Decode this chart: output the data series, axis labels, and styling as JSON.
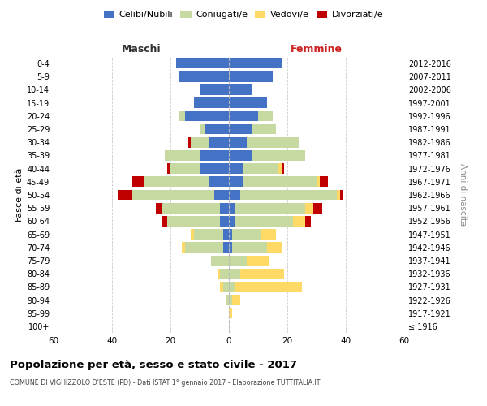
{
  "age_groups": [
    "100+",
    "95-99",
    "90-94",
    "85-89",
    "80-84",
    "75-79",
    "70-74",
    "65-69",
    "60-64",
    "55-59",
    "50-54",
    "45-49",
    "40-44",
    "35-39",
    "30-34",
    "25-29",
    "20-24",
    "15-19",
    "10-14",
    "5-9",
    "0-4"
  ],
  "birth_years": [
    "≤ 1916",
    "1917-1921",
    "1922-1926",
    "1927-1931",
    "1932-1936",
    "1937-1941",
    "1942-1946",
    "1947-1951",
    "1952-1956",
    "1957-1961",
    "1962-1966",
    "1967-1971",
    "1972-1976",
    "1977-1981",
    "1982-1986",
    "1987-1991",
    "1992-1996",
    "1997-2001",
    "2002-2006",
    "2007-2011",
    "2012-2016"
  ],
  "maschi": {
    "celibi": [
      0,
      0,
      0,
      0,
      0,
      0,
      2,
      2,
      3,
      3,
      5,
      7,
      10,
      10,
      7,
      8,
      15,
      12,
      10,
      17,
      18
    ],
    "coniugati": [
      0,
      0,
      1,
      2,
      3,
      6,
      13,
      10,
      18,
      20,
      28,
      22,
      10,
      12,
      6,
      2,
      2,
      0,
      0,
      0,
      0
    ],
    "vedovi": [
      0,
      0,
      0,
      1,
      1,
      0,
      1,
      1,
      0,
      0,
      0,
      0,
      0,
      0,
      0,
      0,
      0,
      0,
      0,
      0,
      0
    ],
    "divorziati": [
      0,
      0,
      0,
      0,
      0,
      0,
      0,
      0,
      2,
      2,
      5,
      4,
      1,
      0,
      1,
      0,
      0,
      0,
      0,
      0,
      0
    ]
  },
  "femmine": {
    "nubili": [
      0,
      0,
      0,
      0,
      0,
      0,
      1,
      1,
      2,
      2,
      4,
      5,
      5,
      8,
      6,
      8,
      10,
      13,
      8,
      15,
      18
    ],
    "coniugate": [
      0,
      0,
      1,
      2,
      4,
      6,
      12,
      10,
      20,
      24,
      33,
      25,
      12,
      18,
      18,
      8,
      5,
      0,
      0,
      0,
      0
    ],
    "vedove": [
      0,
      1,
      3,
      23,
      15,
      8,
      5,
      5,
      4,
      3,
      1,
      1,
      1,
      0,
      0,
      0,
      0,
      0,
      0,
      0,
      0
    ],
    "divorziate": [
      0,
      0,
      0,
      0,
      0,
      0,
      0,
      0,
      2,
      3,
      1,
      3,
      1,
      0,
      0,
      0,
      0,
      0,
      0,
      0,
      0
    ]
  },
  "colors": {
    "celibi": "#4472C4",
    "coniugati": "#C5D9A0",
    "vedovi": "#FFD966",
    "divorziati": "#C00000"
  },
  "title": "Popolazione per età, sesso e stato civile - 2017",
  "subtitle": "COMUNE DI VIGHIZZOLO D'ESTE (PD) - Dati ISTAT 1° gennaio 2017 - Elaborazione TUTTITALIA.IT",
  "xlabel_left": "Maschi",
  "xlabel_right": "Femmine",
  "ylabel_left": "Fasce di età",
  "ylabel_right": "Anni di nascita",
  "xlim": 60,
  "bg_color": "#ffffff",
  "grid_color": "#cccccc"
}
